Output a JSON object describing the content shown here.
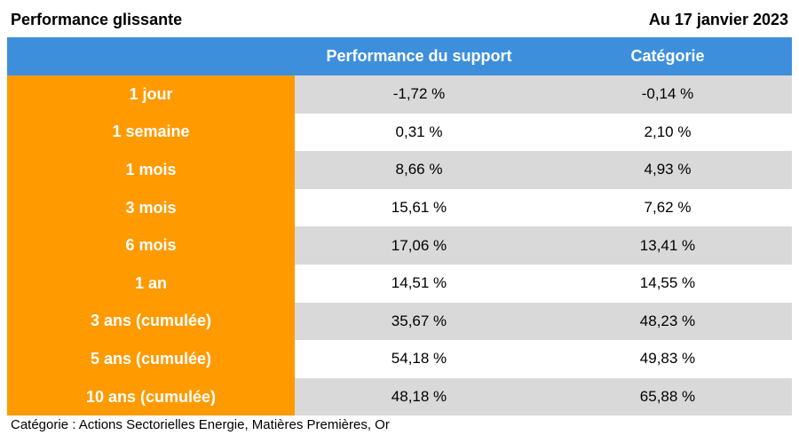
{
  "header": {
    "title": "Performance glissante",
    "date": "Au 17 janvier 2023"
  },
  "table": {
    "columns": [
      "",
      "Performance du support",
      "Catégorie"
    ],
    "rows": [
      {
        "period": "1 jour",
        "support": "-1,72 %",
        "categorie": "-0,14 %"
      },
      {
        "period": "1 semaine",
        "support": "0,31 %",
        "categorie": "2,10 %"
      },
      {
        "period": "1 mois",
        "support": "8,66 %",
        "categorie": "4,93 %"
      },
      {
        "period": "3 mois",
        "support": "15,61 %",
        "categorie": "7,62 %"
      },
      {
        "period": "6 mois",
        "support": "17,06 %",
        "categorie": "13,41 %"
      },
      {
        "period": "1 an",
        "support": "14,51 %",
        "categorie": "14,55 %"
      },
      {
        "period": "3 ans (cumulée)",
        "support": "35,67 %",
        "categorie": "48,23 %"
      },
      {
        "period": "5 ans (cumulée)",
        "support": "54,18 %",
        "categorie": "49,83 %"
      },
      {
        "period": "10 ans (cumulée)",
        "support": "48,18 %",
        "categorie": "65,88 %"
      }
    ]
  },
  "footnote": "Catégorie : Actions Sectorielles Energie, Matières Premières, Or",
  "colors": {
    "header_blue": "#3d8fdc",
    "period_orange": "#ff9a00",
    "row_shade": "#d9d9d9"
  }
}
